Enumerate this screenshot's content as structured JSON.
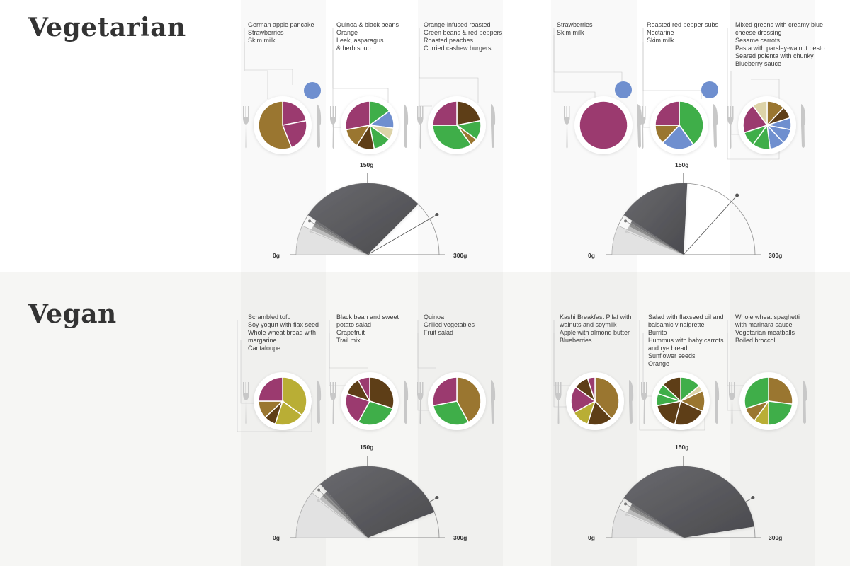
{
  "sections": [
    {
      "title": "Vegetarian",
      "days": [
        {
          "meals": [
            [
              "German apple pancake",
              "Strawberries",
              "Skim milk"
            ],
            [
              "Quinoa & black beans",
              "Orange",
              "Leek, asparagus",
              "& herb soup"
            ],
            [
              "Orange-infused roasted",
              "Green beans & red peppers",
              "Roasted peaches",
              "Curried cashew burgers"
            ]
          ],
          "gauge": {
            "min_label": "0g",
            "mid_label": "150g",
            "max_label": "300g"
          }
        },
        {
          "meals": [
            [
              "Strawberries",
              "Skim milk"
            ],
            [
              "Roasted red pepper subs",
              "Nectarine",
              "Skim milk"
            ],
            [
              "Mixed greens with creamy blue",
              "cheese dressing",
              "Sesame carrots",
              "Pasta with parsley-walnut pesto",
              "Seared polenta with chunky",
              "Blueberry sauce"
            ]
          ],
          "gauge": {
            "min_label": "0g",
            "mid_label": "150g",
            "max_label": "300g"
          }
        }
      ]
    },
    {
      "title": "Vegan",
      "days": [
        {
          "meals": [
            [
              "Scrambled tofu",
              "Soy yogurt with flax seed",
              "Whole wheat bread with",
              "margarine",
              "Cantaloupe"
            ],
            [
              "Black bean and sweet",
              "potato salad",
              "Grapefruit",
              "Trail mix"
            ],
            [
              "Quinoa",
              "Grilled vegetables",
              "Fruit salad"
            ]
          ],
          "gauge": {
            "min_label": "0g",
            "mid_label": "150g",
            "max_label": "300g"
          }
        },
        {
          "meals": [
            [
              "Kashi Breakfast Pilaf with",
              "walnuts and soymilk",
              "Apple with almond butter",
              "Blueberries"
            ],
            [
              "Salad with flaxseed oil and",
              "balsamic vinaigrette",
              "Burrito",
              "Hummus with baby carrots",
              "and rye bread",
              "Sunflower seeds",
              "Orange"
            ],
            [
              "Whole wheat spaghetti",
              "with marinara sauce",
              "Vegetarian meatballs",
              "Boiled broccoli"
            ]
          ],
          "gauge": {
            "min_label": "0g",
            "mid_label": "150g",
            "max_label": "300g"
          }
        }
      ]
    }
  ],
  "colors": {
    "purple": "#9b3a6f",
    "brown_gold": "#9a7630",
    "dark_brown": "#5e3e17",
    "green": "#3fae49",
    "blue": "#6f8fcf",
    "beige": "#ddd3a8",
    "olive": "#b9ae35",
    "gauge_dark": "#5b5b5f",
    "gauge_light": "#e2e2e2",
    "cutlery": "#c8c8c8"
  },
  "chart_data": [
    {
      "type": "pie",
      "slices": [
        {
          "color": "purple",
          "value": 22
        },
        {
          "color": "purple",
          "value": 22
        },
        {
          "color": "brown_gold",
          "value": 56
        }
      ]
    },
    {
      "type": "pie",
      "slices": [
        {
          "color": "green",
          "value": 15
        },
        {
          "color": "blue",
          "value": 12
        },
        {
          "color": "beige",
          "value": 8
        },
        {
          "color": "green",
          "value": 12
        },
        {
          "color": "dark_brown",
          "value": 12
        },
        {
          "color": "brown_gold",
          "value": 13
        },
        {
          "color": "purple",
          "value": 28
        }
      ]
    },
    {
      "type": "pie",
      "slices": [
        {
          "color": "dark_brown",
          "value": 22
        },
        {
          "color": "green",
          "value": 13
        },
        {
          "color": "brown_gold",
          "value": 5
        },
        {
          "color": "green",
          "value": 35
        },
        {
          "color": "purple",
          "value": 25
        }
      ]
    },
    {
      "type": "pie",
      "slices": [
        {
          "color": "purple",
          "value": 100
        }
      ]
    },
    {
      "type": "pie",
      "slices": [
        {
          "color": "green",
          "value": 40
        },
        {
          "color": "blue",
          "value": 22
        },
        {
          "color": "brown_gold",
          "value": 13
        },
        {
          "color": "purple",
          "value": 25
        }
      ]
    },
    {
      "type": "pie",
      "slices": [
        {
          "color": "brown_gold",
          "value": 12
        },
        {
          "color": "dark_brown",
          "value": 8
        },
        {
          "color": "blue",
          "value": 8
        },
        {
          "color": "blue",
          "value": 10
        },
        {
          "color": "blue",
          "value": 10
        },
        {
          "color": "green",
          "value": 12
        },
        {
          "color": "green",
          "value": 10
        },
        {
          "color": "purple",
          "value": 20
        },
        {
          "color": "beige",
          "value": 10
        }
      ]
    },
    {
      "type": "pie",
      "slices": [
        {
          "color": "olive",
          "value": 35
        },
        {
          "color": "olive",
          "value": 20
        },
        {
          "color": "dark_brown",
          "value": 8
        },
        {
          "color": "brown_gold",
          "value": 12
        },
        {
          "color": "purple",
          "value": 25
        }
      ]
    },
    {
      "type": "pie",
      "slices": [
        {
          "color": "dark_brown",
          "value": 30
        },
        {
          "color": "green",
          "value": 28
        },
        {
          "color": "purple",
          "value": 22
        },
        {
          "color": "dark_brown",
          "value": 12
        },
        {
          "color": "purple",
          "value": 8
        }
      ]
    },
    {
      "type": "pie",
      "slices": [
        {
          "color": "brown_gold",
          "value": 42
        },
        {
          "color": "green",
          "value": 30
        },
        {
          "color": "purple",
          "value": 28
        }
      ]
    },
    {
      "type": "pie",
      "slices": [
        {
          "color": "brown_gold",
          "value": 38
        },
        {
          "color": "dark_brown",
          "value": 17
        },
        {
          "color": "olive",
          "value": 12
        },
        {
          "color": "purple",
          "value": 18
        },
        {
          "color": "dark_brown",
          "value": 10
        },
        {
          "color": "purple",
          "value": 5
        }
      ]
    },
    {
      "type": "pie",
      "slices": [
        {
          "color": "green",
          "value": 14
        },
        {
          "color": "beige",
          "value": 4
        },
        {
          "color": "brown_gold",
          "value": 14
        },
        {
          "color": "dark_brown",
          "value": 22
        },
        {
          "color": "dark_brown",
          "value": 18
        },
        {
          "color": "green",
          "value": 8
        },
        {
          "color": "green",
          "value": 7
        },
        {
          "color": "dark_brown",
          "value": 13
        }
      ]
    },
    {
      "type": "pie",
      "slices": [
        {
          "color": "brown_gold",
          "value": 27
        },
        {
          "color": "green",
          "value": 23
        },
        {
          "color": "olive",
          "value": 10
        },
        {
          "color": "brown_gold",
          "value": 10
        },
        {
          "color": "green",
          "value": 30
        }
      ]
    },
    {
      "type": "gauge",
      "scale": [
        0,
        300
      ],
      "dark_from": 40,
      "dark_to": 225,
      "marker": 250
    },
    {
      "type": "gauge",
      "scale": [
        0,
        300
      ],
      "dark_from": 40,
      "dark_to": 155,
      "marker": 220
    },
    {
      "type": "gauge",
      "scale": [
        0,
        300
      ],
      "dark_from": 65,
      "dark_to": 265,
      "marker": 250
    },
    {
      "type": "gauge",
      "scale": [
        0,
        300
      ],
      "dark_from": 40,
      "dark_to": 285,
      "marker": 250
    }
  ]
}
